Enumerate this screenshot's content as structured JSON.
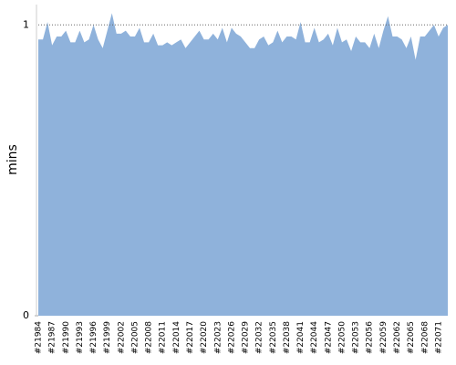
{
  "chart_data": {
    "type": "area",
    "y_label": "mins",
    "categories": [
      "#21984",
      null,
      null,
      "#21987",
      null,
      null,
      "#21990",
      null,
      null,
      "#21993",
      null,
      null,
      "#21996",
      null,
      null,
      "#21999",
      null,
      null,
      "#22002",
      null,
      null,
      "#22005",
      null,
      null,
      "#22008",
      null,
      null,
      "#22011",
      null,
      null,
      "#22014",
      null,
      null,
      "#22017",
      null,
      null,
      "#22020",
      null,
      null,
      "#22023",
      null,
      null,
      "#22026",
      null,
      null,
      "#22029",
      null,
      null,
      "#22032",
      null,
      null,
      "#22035",
      null,
      null,
      "#22038",
      null,
      null,
      "#22041",
      null,
      null,
      "#22044",
      null,
      null,
      "#22047",
      null,
      null,
      "#22050",
      null,
      null,
      "#22053",
      null,
      null,
      "#22056",
      null,
      null,
      "#22059",
      null,
      null,
      "#22062",
      null,
      null,
      "#22065",
      null,
      null,
      "#22068",
      null,
      null,
      "#22071",
      null,
      null
    ],
    "values": [
      0.95,
      0.95,
      1.01,
      0.93,
      0.96,
      0.96,
      0.98,
      0.94,
      0.94,
      0.98,
      0.94,
      0.95,
      1.0,
      0.95,
      0.92,
      0.98,
      1.04,
      0.97,
      0.97,
      0.98,
      0.96,
      0.96,
      0.99,
      0.94,
      0.94,
      0.97,
      0.93,
      0.93,
      0.94,
      0.93,
      0.94,
      0.95,
      0.92,
      0.94,
      0.96,
      0.98,
      0.95,
      0.95,
      0.97,
      0.95,
      0.99,
      0.94,
      0.99,
      0.97,
      0.96,
      0.94,
      0.92,
      0.92,
      0.95,
      0.96,
      0.93,
      0.94,
      0.98,
      0.94,
      0.96,
      0.96,
      0.95,
      1.01,
      0.94,
      0.94,
      0.99,
      0.94,
      0.95,
      0.97,
      0.93,
      0.99,
      0.94,
      0.95,
      0.91,
      0.96,
      0.94,
      0.94,
      0.92,
      0.97,
      0.92,
      0.98,
      1.03,
      0.96,
      0.96,
      0.95,
      0.92,
      0.96,
      0.88,
      0.96,
      0.96,
      0.98,
      1.0,
      0.96,
      0.99,
      1.0
    ],
    "color": "#8fb2db",
    "ylim": [
      0,
      1.07
    ],
    "yticks": [
      0,
      1
    ],
    "grid": true
  }
}
